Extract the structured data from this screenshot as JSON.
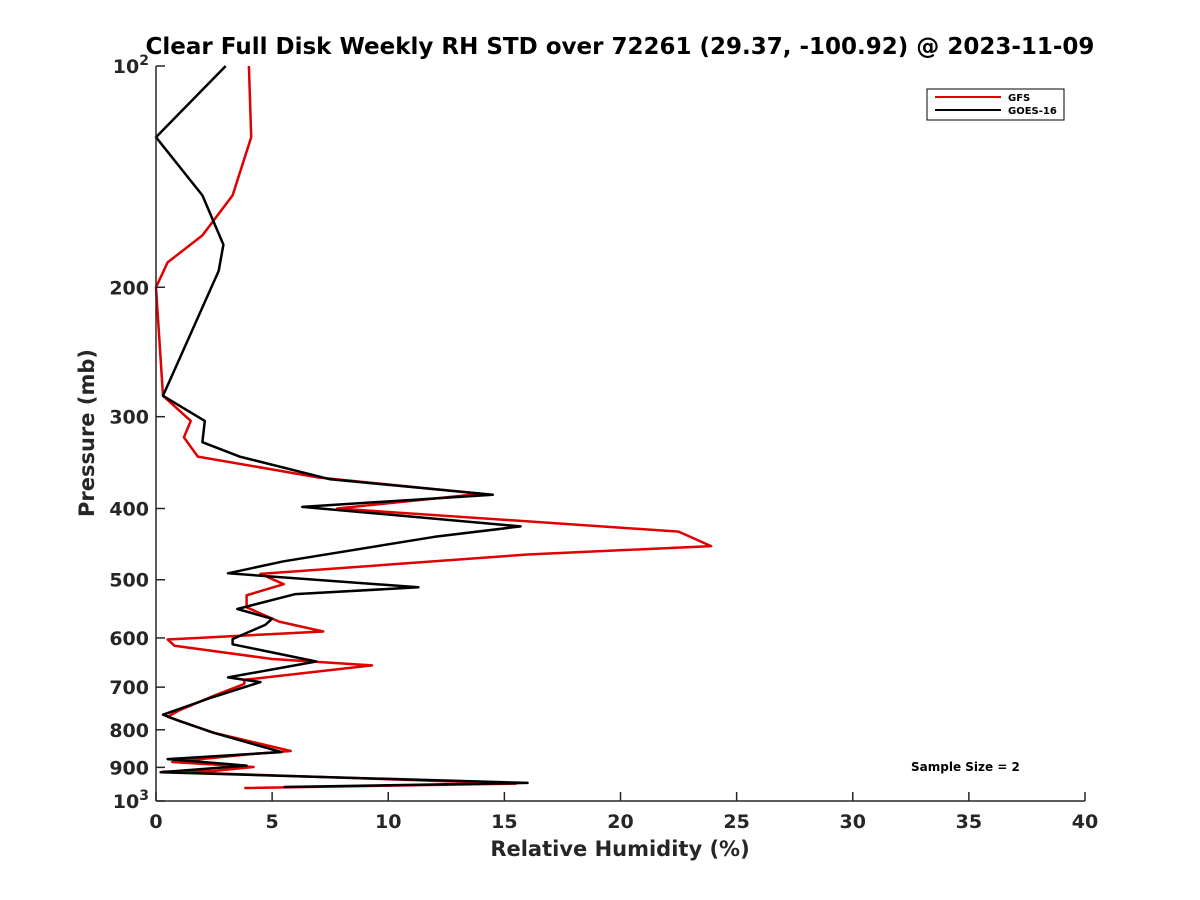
{
  "chart_data": {
    "type": "line",
    "title": "Clear Full Disk Weekly RH STD over 72261 (29.37, -100.92) @ 2023-11-09",
    "xlabel": "Relative Humidity (%)",
    "ylabel": "Pressure (mb)",
    "xlim": [
      0,
      40
    ],
    "ylim": [
      100,
      1000
    ],
    "y_scale": "log",
    "y_reversed": true,
    "x_ticks": [
      "0",
      "5",
      "10",
      "15",
      "20",
      "25",
      "30",
      "35",
      "40"
    ],
    "y_ticks": [
      {
        "value": 100,
        "base": "10",
        "exp": "2"
      },
      {
        "value": 200,
        "label": "200"
      },
      {
        "value": 300,
        "label": "300"
      },
      {
        "value": 400,
        "label": "400"
      },
      {
        "value": 500,
        "label": "500"
      },
      {
        "value": 600,
        "label": "600"
      },
      {
        "value": 700,
        "label": "700"
      },
      {
        "value": 800,
        "label": "800"
      },
      {
        "value": 900,
        "label": "900"
      },
      {
        "value": 1000,
        "base": "10",
        "exp": "3"
      }
    ],
    "grid": false,
    "legend_position": "top-right",
    "annotation": "Sample Size = 2",
    "series": [
      {
        "name": "GFS",
        "color": "#e00000",
        "points": [
          [
            4.0,
            100
          ],
          [
            4.1,
            125
          ],
          [
            3.3,
            150
          ],
          [
            2.0,
            170
          ],
          [
            0.5,
            185
          ],
          [
            0.0,
            200
          ],
          [
            0.2,
            250
          ],
          [
            0.3,
            281
          ],
          [
            1.5,
            304
          ],
          [
            1.2,
            320
          ],
          [
            1.8,
            340
          ],
          [
            7.0,
            363
          ],
          [
            14.0,
            382
          ],
          [
            7.8,
            400
          ],
          [
            22.5,
            430
          ],
          [
            23.9,
            450
          ],
          [
            16.0,
            462
          ],
          [
            4.5,
            491
          ],
          [
            5.5,
            507
          ],
          [
            3.9,
            525
          ],
          [
            3.9,
            545
          ],
          [
            5.3,
            570
          ],
          [
            7.2,
            588
          ],
          [
            0.5,
            603
          ],
          [
            0.8,
            615
          ],
          [
            5.0,
            641
          ],
          [
            9.3,
            654
          ],
          [
            3.8,
            684
          ],
          [
            3.8,
            693
          ],
          [
            2.5,
            719
          ],
          [
            1.0,
            753
          ],
          [
            0.5,
            768
          ],
          [
            2.5,
            808
          ],
          [
            5.8,
            855
          ],
          [
            4.0,
            864
          ],
          [
            0.7,
            885
          ],
          [
            4.2,
            899
          ],
          [
            2.5,
            910
          ],
          [
            0.3,
            912
          ],
          [
            15.5,
            947
          ],
          [
            3.8,
            960
          ]
        ]
      },
      {
        "name": "GOES-16",
        "color": "#000000",
        "points": [
          [
            3.0,
            100
          ],
          [
            0.0,
            125
          ],
          [
            2.0,
            150
          ],
          [
            2.9,
            175
          ],
          [
            2.7,
            190
          ],
          [
            0.3,
            281
          ],
          [
            2.1,
            304
          ],
          [
            2.0,
            325
          ],
          [
            3.6,
            340
          ],
          [
            7.5,
            365
          ],
          [
            14.5,
            383
          ],
          [
            6.3,
            398
          ],
          [
            15.7,
            423
          ],
          [
            12.0,
            437
          ],
          [
            5.5,
            472
          ],
          [
            3.1,
            490
          ],
          [
            11.3,
            512
          ],
          [
            6.0,
            523
          ],
          [
            3.5,
            548
          ],
          [
            5.0,
            565
          ],
          [
            4.7,
            576
          ],
          [
            3.3,
            602
          ],
          [
            3.3,
            612
          ],
          [
            6.9,
            646
          ],
          [
            3.1,
            679
          ],
          [
            4.5,
            689
          ],
          [
            2.4,
            723
          ],
          [
            0.3,
            763
          ],
          [
            1.0,
            778
          ],
          [
            2.5,
            808
          ],
          [
            5.4,
            858
          ],
          [
            0.5,
            877
          ],
          [
            3.9,
            895
          ],
          [
            0.2,
            914
          ],
          [
            16.0,
            945
          ],
          [
            5.5,
            957
          ]
        ]
      }
    ]
  }
}
